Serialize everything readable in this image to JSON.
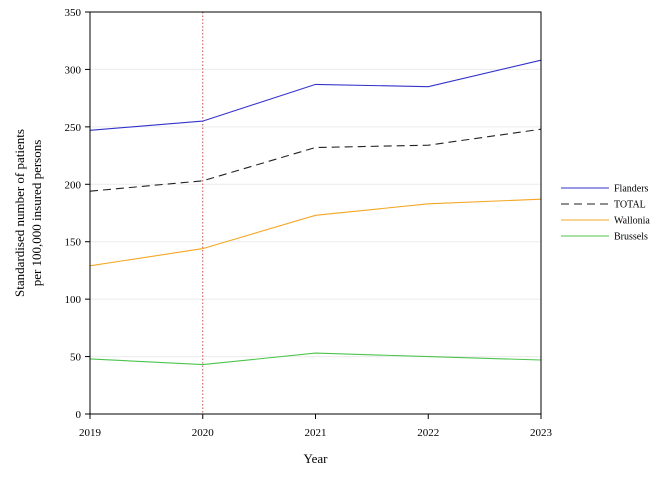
{
  "chart_data": {
    "type": "line",
    "title": "",
    "xlabel": "Year",
    "ylabel_lines": [
      "Standardised number of patients",
      "per 100,000 insured persons"
    ],
    "x": [
      2019,
      2020,
      2021,
      2022,
      2023
    ],
    "x_tick_labels": [
      "2019",
      "2020",
      "2021",
      "2022",
      "2023"
    ],
    "xlim": [
      2019,
      2023
    ],
    "ylim": [
      0,
      350
    ],
    "y_ticks": [
      0,
      50,
      100,
      150,
      200,
      250,
      300,
      350
    ],
    "y_tick_labels": [
      "0",
      "50",
      "100",
      "150",
      "200",
      "250",
      "300",
      "350"
    ],
    "grid": true,
    "reference_line_x": 2020,
    "legend_position": "right",
    "series": [
      {
        "name": "Flanders",
        "values": [
          247,
          255,
          287,
          285,
          308
        ],
        "color": "#3333cc",
        "dash": "solid"
      },
      {
        "name": "TOTAL",
        "values": [
          194,
          203,
          232,
          234,
          248
        ],
        "color": "#222222",
        "dash": "dashed"
      },
      {
        "name": "Wallonia",
        "values": [
          129,
          144,
          173,
          183,
          187
        ],
        "color": "#f5a623",
        "dash": "solid"
      },
      {
        "name": "Brussels",
        "values": [
          48,
          43,
          53,
          50,
          47
        ],
        "color": "#4cc44c",
        "dash": "solid"
      }
    ]
  }
}
